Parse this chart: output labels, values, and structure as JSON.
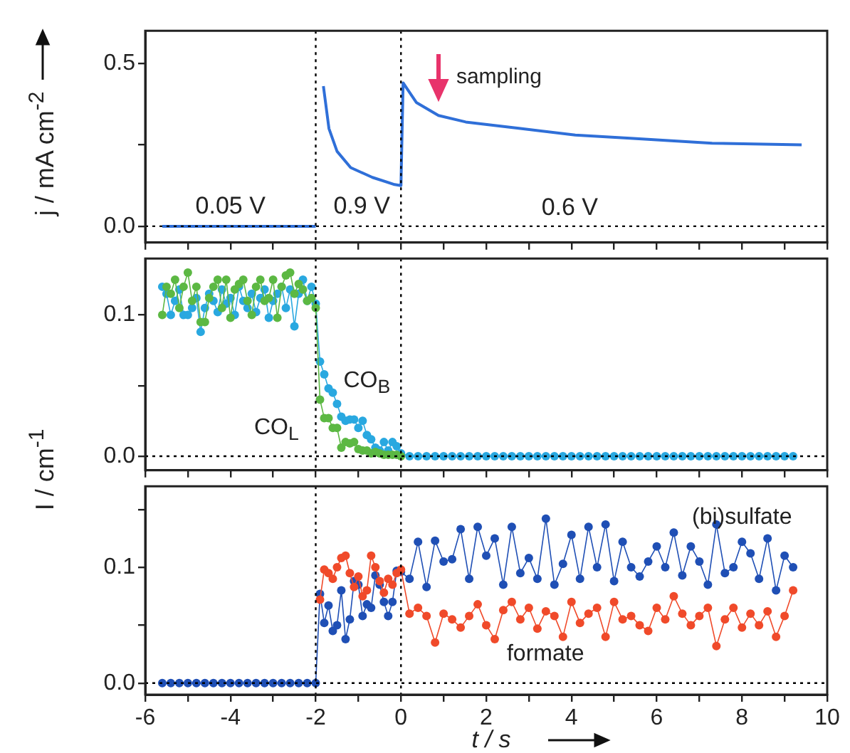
{
  "chart_data": [
    {
      "type": "line",
      "marker": "none",
      "tick_labels": "y",
      "ylabel": "j / mA cm$^{-2}$",
      "xlim": [
        -6,
        10
      ],
      "xticks": [
        -6,
        {
          "value": -5,
          "label": null
        },
        -4,
        {
          "value": -3,
          "label": null
        },
        -2,
        {
          "value": -1,
          "label": null
        },
        0,
        {
          "value": 1,
          "label": null
        },
        2,
        {
          "value": 3,
          "label": null
        },
        4,
        {
          "value": 5,
          "label": null
        },
        6,
        {
          "value": 7,
          "label": null
        },
        8,
        {
          "value": 9,
          "label": null
        },
        10
      ],
      "ylim": [
        -0.05,
        0.6
      ],
      "yticks": [
        {
          "value": 0,
          "label": "0.0"
        },
        {
          "value": 0.25,
          "label": null
        },
        {
          "value": 0.5,
          "label": "0.5"
        }
      ],
      "series": [
        {
          "color": "#2f6fd8",
          "x": [
            -5.6,
            -4,
            -2
          ],
          "values": [
            0,
            0,
            0
          ]
        },
        {
          "color": "#2f6fd8",
          "x": [
            -1.82,
            -1.69,
            -1.5,
            -1.18,
            -0.67,
            -0.15,
            0,
            0.05,
            0.36,
            0.88,
            1.52,
            2.8,
            4.09,
            5.38,
            7.3,
            9.4
          ],
          "values": [
            0.43,
            0.3,
            0.23,
            0.18,
            0.15,
            0.128,
            0.125,
            0.44,
            0.38,
            0.34,
            0.32,
            0.3,
            0.28,
            0.27,
            0.255,
            0.25
          ]
        }
      ],
      "ref_lines": [
        {
          "axis": "x",
          "value": -2,
          "color": "#000000",
          "line_style": "dotted"
        },
        {
          "axis": "x",
          "value": 0,
          "color": "#000000",
          "line_style": "dotted"
        },
        {
          "axis": "y",
          "value": 0,
          "color": "#000000",
          "line_style": "dotted"
        }
      ],
      "annotations": [
        "0.05 V",
        "0.9 V",
        "0.6 V",
        "sampling"
      ]
    },
    {
      "type": "line",
      "marker": "circle",
      "tick_labels": "y",
      "ylabel": "I / cm$^{-1}$",
      "xlim": [
        -6,
        10
      ],
      "xticks": [
        -6,
        {
          "value": -5,
          "label": null
        },
        -4,
        {
          "value": -3,
          "label": null
        },
        -2,
        {
          "value": -1,
          "label": null
        },
        0,
        {
          "value": 1,
          "label": null
        },
        2,
        {
          "value": 3,
          "label": null
        },
        4,
        {
          "value": 5,
          "label": null
        },
        6,
        {
          "value": 7,
          "label": null
        },
        8,
        {
          "value": 9,
          "label": null
        },
        10
      ],
      "ylim": [
        -0.01,
        0.14
      ],
      "yticks": [
        {
          "value": 0,
          "label": "0.0"
        },
        {
          "value": 0.05,
          "label": null
        },
        {
          "value": 0.1,
          "label": "0.1"
        }
      ],
      "series": [
        {
          "name": "CO$_{L}$",
          "color": "#5cb843",
          "x": [
            -5.6,
            -5.5,
            -5.4,
            -5.3,
            -5.2,
            -5.1,
            -5,
            -4.9,
            -4.8,
            -4.7,
            -4.6,
            -4.5,
            -4.4,
            -4.3,
            -4.2,
            -4.1,
            -4,
            -3.9,
            -3.8,
            -3.7,
            -3.6,
            -3.5,
            -3.4,
            -3.3,
            -3.2,
            -3.1,
            -3,
            -2.9,
            -2.8,
            -2.7,
            -2.6,
            -2.5,
            -2.4,
            -2.3,
            -2.2,
            -2.1,
            -2,
            -1.9,
            -1.8,
            -1.7,
            -1.6,
            -1.5,
            -1.4,
            -1.3,
            -1.2,
            -1.1,
            -1,
            -0.9,
            -0.8,
            -0.7,
            -0.6,
            -0.5,
            -0.4,
            -0.3,
            -0.2,
            -0.1,
            0
          ],
          "values": [
            0.1,
            0.12,
            0.115,
            0.125,
            0.105,
            0.12,
            0.13,
            0.11,
            0.12,
            0.095,
            0.095,
            0.112,
            0.12,
            0.125,
            0.105,
            0.125,
            0.098,
            0.118,
            0.122,
            0.125,
            0.11,
            0.1,
            0.12,
            0.125,
            0.11,
            0.112,
            0.125,
            0.098,
            0.12,
            0.128,
            0.13,
            0.115,
            0.122,
            0.118,
            0.11,
            0.112,
            0.105,
            0.04,
            0.027,
            0.027,
            0.02,
            0.02,
            0.006,
            0.01,
            0.009,
            0.01,
            0.005,
            0.004,
            0.004,
            0.002,
            0.003,
            0.002,
            0.001,
            0.001,
            0.001,
            0.001,
            0
          ]
        },
        {
          "name": "CO$_{B}$",
          "color": "#29a8e0",
          "x": [
            -5.6,
            -5.5,
            -5.4,
            -5.3,
            -5.2,
            -5.1,
            -5,
            -4.9,
            -4.8,
            -4.7,
            -4.6,
            -4.5,
            -4.4,
            -4.3,
            -4.2,
            -4.1,
            -4,
            -3.9,
            -3.8,
            -3.7,
            -3.6,
            -3.5,
            -3.4,
            -3.3,
            -3.2,
            -3.1,
            -3,
            -2.9,
            -2.8,
            -2.7,
            -2.6,
            -2.5,
            -2.4,
            -2.3,
            -2.2,
            -2.1,
            -2,
            -1.9,
            -1.8,
            -1.7,
            -1.6,
            -1.5,
            -1.4,
            -1.3,
            -1.2,
            -1.1,
            -1,
            -0.9,
            -0.8,
            -0.7,
            -0.6,
            -0.5,
            -0.4,
            -0.3,
            -0.2,
            -0.1,
            0,
            0.2,
            0.4,
            0.6,
            0.8,
            1,
            1.2,
            1.4,
            1.6,
            1.8,
            2,
            2.2,
            2.4,
            2.6,
            2.8,
            3,
            3.2,
            3.4,
            3.6,
            3.8,
            4,
            4.2,
            4.4,
            4.6,
            4.8,
            5,
            5.2,
            5.4,
            5.6,
            5.8,
            6,
            6.2,
            6.4,
            6.6,
            6.8,
            7,
            7.2,
            7.4,
            7.6,
            7.8,
            8,
            8.2,
            8.4,
            8.6,
            8.8,
            9,
            9.2
          ],
          "values": [
            0.12,
            0.115,
            0.1,
            0.11,
            0.118,
            0.1,
            0.1,
            0.105,
            0.112,
            0.088,
            0.105,
            0.115,
            0.11,
            0.102,
            0.118,
            0.108,
            0.112,
            0.1,
            0.12,
            0.11,
            0.105,
            0.115,
            0.102,
            0.112,
            0.118,
            0.098,
            0.11,
            0.115,
            0.12,
            0.105,
            0.118,
            0.092,
            0.115,
            0.125,
            0.11,
            0.12,
            0.108,
            0.067,
            0.058,
            0.048,
            0.045,
            0.037,
            0.028,
            0.025,
            0.026,
            0.026,
            0.02,
            0.025,
            0.015,
            0.012,
            0.006,
            0.004,
            0.01,
            0.004,
            0.01,
            0.007,
            0.002,
            0,
            0,
            0,
            0,
            0,
            0,
            0,
            0,
            0,
            0,
            0,
            0,
            0,
            0,
            0,
            0,
            0,
            0,
            0,
            0,
            0,
            0,
            0,
            0,
            0,
            0,
            0,
            0,
            0,
            0,
            0,
            0,
            0,
            0,
            0,
            0,
            0,
            0,
            0,
            0,
            0,
            0,
            0,
            0,
            0,
            0
          ]
        }
      ],
      "ref_lines": [
        {
          "axis": "x",
          "value": -2,
          "color": "#000000",
          "line_style": "dotted"
        },
        {
          "axis": "x",
          "value": 0,
          "color": "#000000",
          "line_style": "dotted"
        },
        {
          "axis": "y",
          "value": 0,
          "color": "#000000",
          "line_style": "dotted"
        }
      ]
    },
    {
      "type": "line",
      "marker": "circle",
      "xlabel": "t / s",
      "xlim": [
        -6,
        10
      ],
      "xticks": [
        -6,
        {
          "value": -5,
          "label": null
        },
        -4,
        {
          "value": -3,
          "label": null
        },
        -2,
        {
          "value": -1,
          "label": null
        },
        0,
        {
          "value": 1,
          "label": null
        },
        2,
        {
          "value": 3,
          "label": null
        },
        4,
        {
          "value": 5,
          "label": null
        },
        6,
        {
          "value": 7,
          "label": null
        },
        8,
        {
          "value": 9,
          "label": null
        },
        10
      ],
      "ylim": [
        -0.01,
        0.17
      ],
      "yticks": [
        {
          "value": 0,
          "label": "0.0"
        },
        {
          "value": 0.05,
          "label": null
        },
        {
          "value": 0.1,
          "label": "0.1"
        },
        {
          "value": 0.15,
          "label": null
        }
      ],
      "series": [
        {
          "name": "formate",
          "color": "#f04a2a",
          "x": [
            -1.9,
            -1.8,
            -1.7,
            -1.6,
            -1.5,
            -1.4,
            -1.3,
            -1.2,
            -1.1,
            -1,
            -0.9,
            -0.8,
            -0.7,
            -0.6,
            -0.5,
            -0.4,
            -0.3,
            -0.2,
            -0.1,
            0,
            0.2,
            0.4,
            0.6,
            0.8,
            1,
            1.2,
            1.4,
            1.6,
            1.8,
            2,
            2.2,
            2.4,
            2.6,
            2.8,
            3,
            3.2,
            3.4,
            3.6,
            3.8,
            4,
            4.2,
            4.4,
            4.6,
            4.8,
            5,
            5.2,
            5.4,
            5.6,
            5.8,
            6,
            6.2,
            6.4,
            6.6,
            6.8,
            7,
            7.2,
            7.4,
            7.6,
            7.8,
            8,
            8.2,
            8.4,
            8.6,
            8.8,
            9,
            9.2
          ],
          "values": [
            0.072,
            0.098,
            0.095,
            0.09,
            0.1,
            0.108,
            0.11,
            0.095,
            0.083,
            0.092,
            0.075,
            0.08,
            0.11,
            0.1,
            0.088,
            0.078,
            0.09,
            0.085,
            0.095,
            0.098,
            0.06,
            0.065,
            0.058,
            0.035,
            0.06,
            0.055,
            0.048,
            0.058,
            0.068,
            0.05,
            0.038,
            0.063,
            0.07,
            0.055,
            0.065,
            0.047,
            0.062,
            0.058,
            0.04,
            0.07,
            0.052,
            0.06,
            0.065,
            0.04,
            0.07,
            0.055,
            0.058,
            0.05,
            0.045,
            0.065,
            0.055,
            0.075,
            0.06,
            0.05,
            0.058,
            0.065,
            0.032,
            0.055,
            0.065,
            0.048,
            0.06,
            0.05,
            0.062,
            0.04,
            0.058,
            0.08
          ]
        },
        {
          "name": "(bi)sulfate",
          "color": "#1f4fb5",
          "x": [
            -5.6,
            -5.4,
            -5.2,
            -5,
            -4.8,
            -4.6,
            -4.4,
            -4.2,
            -4,
            -3.8,
            -3.6,
            -3.4,
            -3.2,
            -3,
            -2.8,
            -2.6,
            -2.4,
            -2.2,
            -2,
            -1.9,
            -1.8,
            -1.7,
            -1.6,
            -1.5,
            -1.4,
            -1.3,
            -1.2,
            -1.1,
            -1,
            -0.9,
            -0.8,
            -0.7,
            -0.6,
            -0.5,
            -0.4,
            -0.3,
            -0.2,
            -0.1,
            0,
            0.2,
            0.4,
            0.6,
            0.8,
            1,
            1.2,
            1.4,
            1.6,
            1.8,
            2,
            2.2,
            2.4,
            2.6,
            2.8,
            3,
            3.2,
            3.4,
            3.6,
            3.8,
            4,
            4.2,
            4.4,
            4.6,
            4.8,
            5,
            5.2,
            5.4,
            5.6,
            5.8,
            6,
            6.2,
            6.4,
            6.6,
            6.8,
            7,
            7.2,
            7.4,
            7.6,
            7.8,
            8,
            8.2,
            8.4,
            8.6,
            8.8,
            9,
            9.2
          ],
          "values": [
            0,
            0,
            0,
            0,
            0,
            0,
            0,
            0,
            0,
            0,
            0,
            0,
            0,
            0,
            0,
            0,
            0,
            0,
            0,
            0.077,
            0.052,
            0.067,
            0.045,
            0.05,
            0.08,
            0.038,
            0.055,
            0.088,
            0.085,
            0.058,
            0.068,
            0.065,
            0.093,
            0.085,
            0.07,
            0.058,
            0.07,
            0.097,
            0.096,
            0.09,
            0.122,
            0.083,
            0.123,
            0.105,
            0.107,
            0.133,
            0.09,
            0.135,
            0.11,
            0.125,
            0.085,
            0.135,
            0.095,
            0.108,
            0.09,
            0.142,
            0.085,
            0.103,
            0.128,
            0.09,
            0.135,
            0.1,
            0.137,
            0.088,
            0.122,
            0.1,
            0.092,
            0.105,
            0.118,
            0.1,
            0.13,
            0.093,
            0.118,
            0.105,
            0.085,
            0.137,
            0.095,
            0.1,
            0.122,
            0.112,
            0.09,
            0.125,
            0.08,
            0.11,
            0.1
          ]
        }
      ],
      "ref_lines": [
        {
          "axis": "x",
          "value": -2,
          "color": "#000000",
          "line_style": "dotted"
        },
        {
          "axis": "x",
          "value": 0,
          "color": "#000000",
          "line_style": "dotted"
        },
        {
          "axis": "y",
          "value": 0,
          "color": "#000000",
          "line_style": "dotted"
        }
      ]
    }
  ]
}
